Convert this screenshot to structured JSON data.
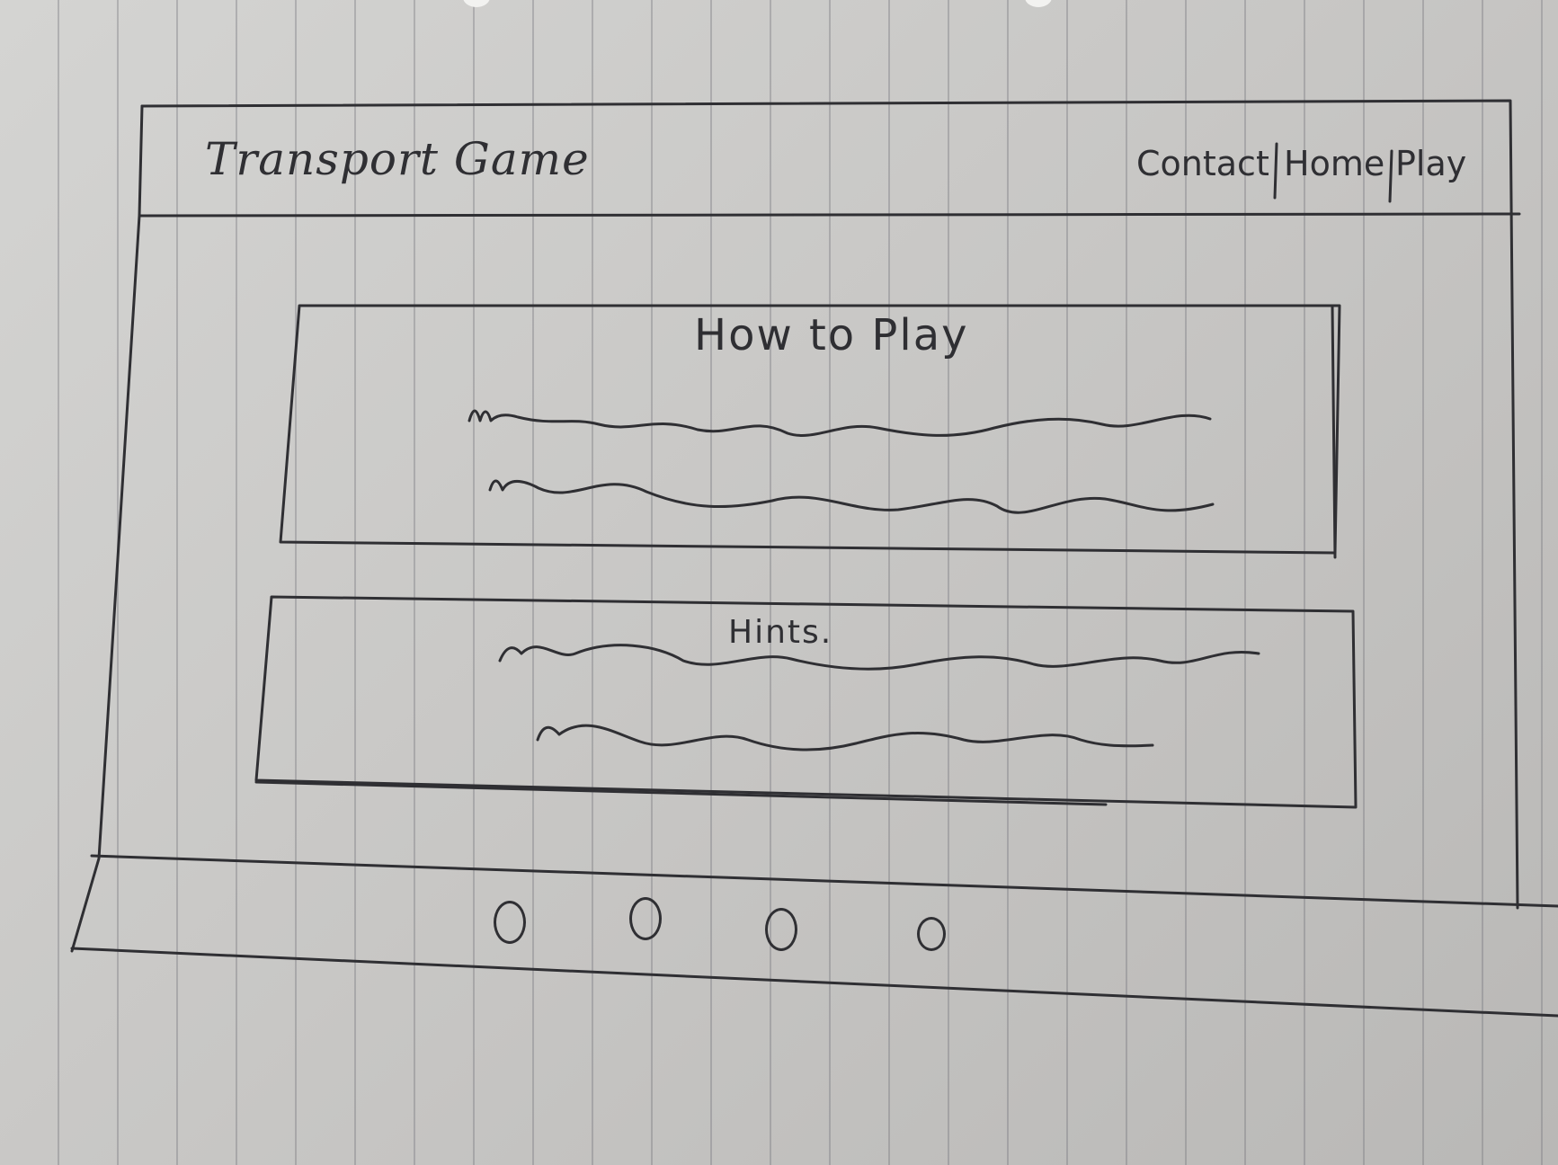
{
  "header": {
    "title": "Transport Game",
    "nav": [
      "Contact",
      "Home",
      "Play"
    ]
  },
  "sections": [
    {
      "heading": "How to Play"
    },
    {
      "heading": "Hints."
    }
  ],
  "footer": {
    "icons": [
      "circle-icon",
      "circle-icon",
      "circle-icon",
      "circle-icon"
    ]
  },
  "colors": {
    "ink": "#2f2f33",
    "paper": "#c9c8c6"
  }
}
